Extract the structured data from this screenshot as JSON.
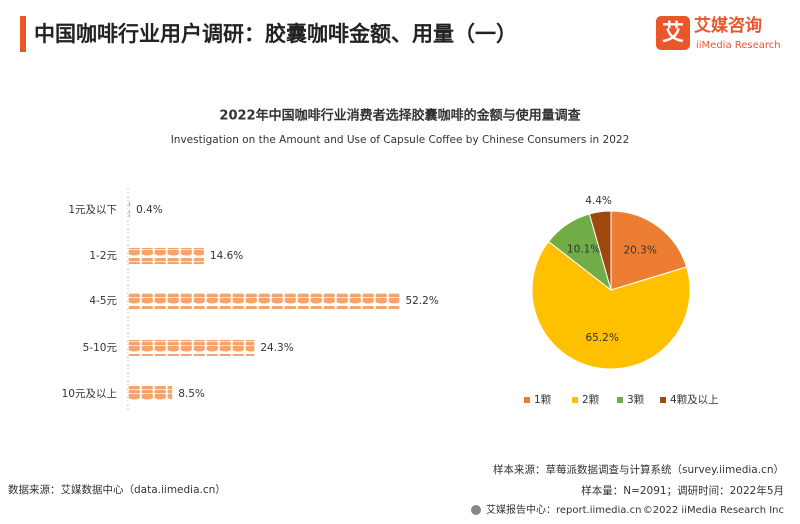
{
  "header": {
    "title": "中国咖啡行业用户调研：胶囊咖啡金额、用量（一）",
    "logo_cn": "艾媒咨询",
    "logo_en": "iiMedia Research"
  },
  "chart_data": [
    {
      "type": "pictograph-bar",
      "title": "2022年中国咖啡行业消费者选择胶囊咖啡的金额与使用量调查",
      "subtitle": "Investigation on the Amount and Use of Capsule Coffee by Chinese Consumers in 2022",
      "categories": [
        "1元及以下",
        "1-2元",
        "4-5元",
        "5-10元",
        "10元及以上"
      ],
      "values": [
        0.4,
        14.6,
        52.2,
        24.3,
        8.5
      ],
      "value_labels": [
        "0.4%",
        "14.6%",
        "52.2%",
        "24.3%",
        "8.5%"
      ],
      "color": "#f4a46c"
    },
    {
      "type": "pie",
      "categories": [
        "1颗",
        "2颗",
        "3颗",
        "4颗及以上"
      ],
      "values": [
        20.3,
        65.2,
        10.1,
        4.4
      ],
      "value_labels": [
        "20.3%",
        "65.2%",
        "10.1%",
        "4.4%"
      ],
      "colors": [
        "#ed7d31",
        "#ffc000",
        "#70ad47",
        "#9e480e"
      ],
      "legend": "bottom"
    }
  ],
  "footer": {
    "source": "数据来源：艾媒数据中心（data.iimedia.cn）",
    "sample_source": "样本来源：草莓派数据调查与计算系统（survey.iimedia.cn）",
    "sample_size": "样本量：N=2091；调研时间：2022年5月",
    "report": "艾媒报告中心：report.iimedia.cn",
    "copyright": "©2022  iiMedia Research  Inc"
  }
}
